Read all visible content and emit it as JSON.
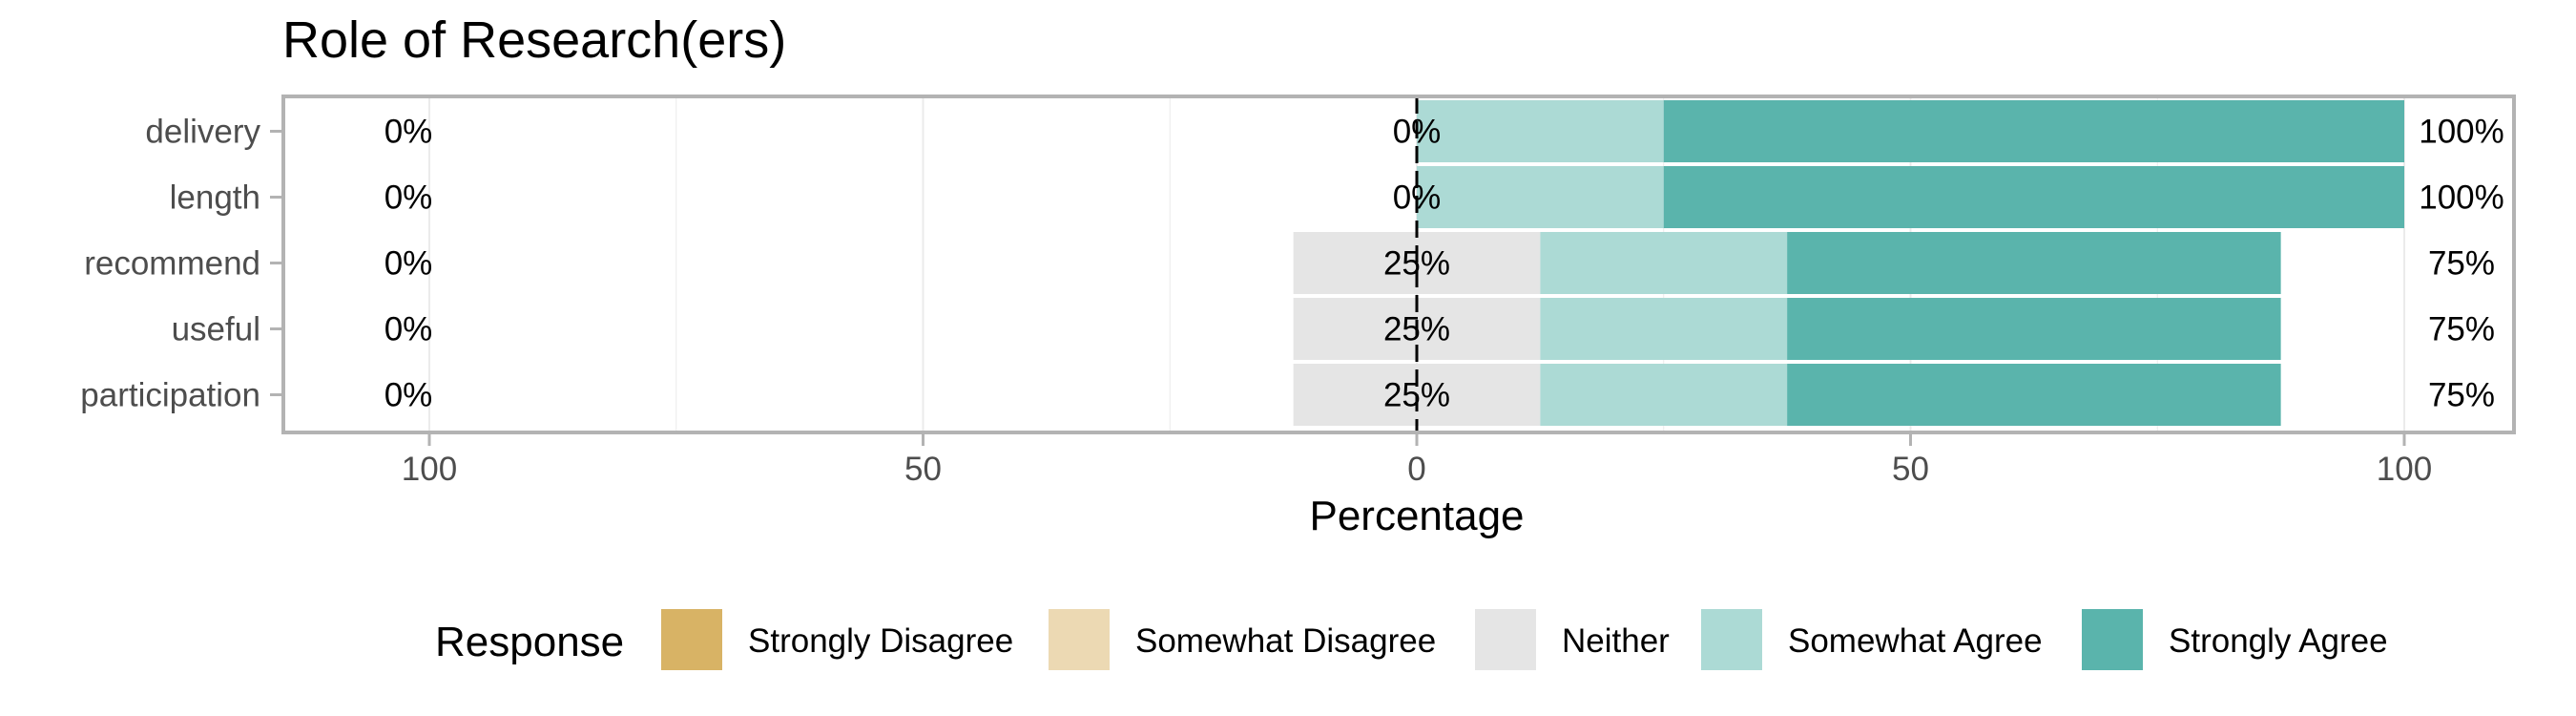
{
  "chart_data": {
    "type": "bar",
    "orientation": "horizontal-diverging",
    "title": "Role of Research(ers)",
    "xlabel": "Percentage",
    "ylabel": "",
    "xlim": [
      -100,
      100
    ],
    "x_ticks": [
      -100,
      -50,
      0,
      50,
      100
    ],
    "x_tick_labels": [
      "100",
      "50",
      "0",
      "50",
      "100"
    ],
    "grid": true,
    "legend_position": "bottom",
    "legend_title": "Response",
    "categories": [
      "delivery",
      "length",
      "recommend",
      "useful",
      "participation"
    ],
    "series": [
      {
        "name": "Strongly Disagree",
        "color": "#d8b365",
        "values": [
          0,
          0,
          0,
          0,
          0
        ]
      },
      {
        "name": "Somewhat Disagree",
        "color": "#ecd9b3",
        "values": [
          0,
          0,
          0,
          0,
          0
        ]
      },
      {
        "name": "Neither",
        "color": "#e5e5e5",
        "values": [
          0,
          0,
          25,
          25,
          25
        ]
      },
      {
        "name": "Somewhat Agree",
        "color": "#acdad5",
        "values": [
          25,
          25,
          25,
          25,
          25
        ]
      },
      {
        "name": "Strongly Agree",
        "color": "#5ab4ac",
        "values": [
          75,
          75,
          50,
          50,
          50
        ]
      }
    ],
    "labels_left": [
      "0%",
      "0%",
      "0%",
      "0%",
      "0%"
    ],
    "labels_center": [
      "0%",
      "0%",
      "25%",
      "25%",
      "25%"
    ],
    "labels_right": [
      "100%",
      "100%",
      "75%",
      "75%",
      "75%"
    ]
  }
}
